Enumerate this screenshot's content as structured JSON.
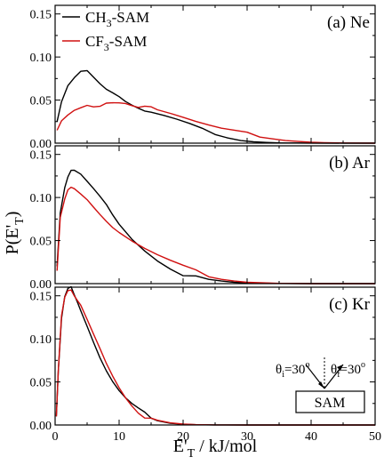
{
  "figure": {
    "shared_xlabel": "E'",
    "shared_xlabel_sub": "T",
    "shared_xlabel_unit": " / kJ/mol",
    "shared_ylabel": "P(E'",
    "shared_ylabel_sub": "T",
    "shared_ylabel_close": ")",
    "legend": [
      {
        "pre": "CH",
        "sub": "3",
        "post": "-SAM",
        "color": "#000000"
      },
      {
        "pre": "CF",
        "sub": "3",
        "post": "-SAM",
        "color": "#d01010"
      }
    ],
    "inset": {
      "theta_i_label": "θ",
      "theta_i_sub": "i",
      "theta_i_val": "=30",
      "theta_i_sup": "o",
      "theta_f_label": "θ",
      "theta_f_sub": "f",
      "theta_f_val": "=30",
      "theta_f_sup": "o",
      "box_label": "SAM"
    }
  },
  "chart_data": [
    {
      "type": "line",
      "title": "(a) Ne",
      "xlim": [
        0,
        50
      ],
      "ylim": [
        0,
        0.16
      ],
      "xticks": [
        0,
        10,
        20,
        30,
        40,
        50
      ],
      "yticks": [
        "0.00",
        "0.05",
        "0.10",
        "0.15"
      ],
      "series": [
        {
          "name": "CH3-SAM",
          "color": "#000000",
          "x": [
            0.3,
            1,
            2,
            3,
            4,
            5,
            6,
            7,
            8,
            9,
            10,
            11,
            12,
            13,
            14,
            15,
            17,
            19,
            21,
            23,
            25,
            27,
            29,
            31,
            33,
            35,
            40,
            45,
            50
          ],
          "y": [
            0.025,
            0.045,
            0.063,
            0.072,
            0.08,
            0.082,
            0.076,
            0.07,
            0.065,
            0.062,
            0.058,
            0.052,
            0.047,
            0.042,
            0.037,
            0.034,
            0.029,
            0.024,
            0.019,
            0.014,
            0.01,
            0.006,
            0.003,
            0.0015,
            0.0008,
            0.0003,
            0.0001,
            0,
            0
          ]
        },
        {
          "name": "CF3-SAM",
          "color": "#d01010",
          "x": [
            0.3,
            1,
            2,
            3,
            4,
            5,
            6,
            7,
            8,
            9,
            10,
            11,
            12,
            13,
            14,
            15,
            16,
            18,
            20,
            22,
            24,
            26,
            28,
            30,
            32,
            34,
            36,
            38,
            40,
            42,
            45,
            50
          ],
          "y": [
            0.015,
            0.028,
            0.036,
            0.042,
            0.045,
            0.047,
            0.044,
            0.043,
            0.045,
            0.044,
            0.043,
            0.042,
            0.04,
            0.039,
            0.042,
            0.043,
            0.041,
            0.038,
            0.034,
            0.029,
            0.024,
            0.019,
            0.015,
            0.011,
            0.007,
            0.005,
            0.003,
            0.002,
            0.001,
            0.0005,
            0.0002,
            0
          ]
        }
      ]
    },
    {
      "type": "line",
      "title": "(b) Ar",
      "xlim": [
        0,
        50
      ],
      "ylim": [
        0,
        0.16
      ],
      "xticks": [
        0,
        10,
        20,
        30,
        40,
        50
      ],
      "yticks": [
        "0.00",
        "0.05",
        "0.10",
        "0.15"
      ],
      "series": [
        {
          "name": "CH3-SAM",
          "color": "#000000",
          "x": [
            0.3,
            0.8,
            1.5,
            2,
            2.5,
            3,
            4,
            5,
            6,
            7,
            8,
            9,
            10,
            12,
            14,
            16,
            18,
            20,
            22,
            24,
            26,
            28,
            30,
            35,
            40,
            50
          ],
          "y": [
            0.02,
            0.085,
            0.115,
            0.128,
            0.135,
            0.134,
            0.128,
            0.118,
            0.108,
            0.098,
            0.088,
            0.076,
            0.066,
            0.05,
            0.038,
            0.028,
            0.02,
            0.013,
            0.009,
            0.005,
            0.003,
            0.0015,
            0.0008,
            0.0002,
            0,
            0
          ]
        },
        {
          "name": "CF3-SAM",
          "color": "#d01010",
          "x": [
            0.3,
            0.8,
            1.5,
            2,
            2.5,
            3,
            4,
            5,
            6,
            7,
            8,
            9,
            10,
            12,
            14,
            16,
            18,
            20,
            22,
            24,
            26,
            28,
            30,
            35,
            40,
            50
          ],
          "y": [
            0.015,
            0.075,
            0.095,
            0.105,
            0.108,
            0.107,
            0.102,
            0.097,
            0.09,
            0.083,
            0.076,
            0.069,
            0.063,
            0.052,
            0.042,
            0.033,
            0.025,
            0.018,
            0.012,
            0.008,
            0.005,
            0.003,
            0.0015,
            0.0003,
            0,
            0
          ]
        }
      ]
    },
    {
      "type": "line",
      "title": "(c) Kr",
      "xlim": [
        0,
        50
      ],
      "ylim": [
        0,
        0.16
      ],
      "xticks": [
        0,
        10,
        20,
        30,
        40,
        50
      ],
      "yticks": [
        "0.00",
        "0.05",
        "0.10",
        "0.15"
      ],
      "series": [
        {
          "name": "CH3-SAM",
          "color": "#000000",
          "x": [
            0.2,
            0.5,
            1,
            1.5,
            2,
            2.5,
            3,
            3.5,
            4,
            5,
            6,
            7,
            8,
            9,
            10,
            11,
            12,
            13,
            14,
            15,
            16,
            18,
            20,
            22,
            25,
            30,
            50
          ],
          "y": [
            0.01,
            0.06,
            0.12,
            0.145,
            0.155,
            0.158,
            0.15,
            0.143,
            0.135,
            0.118,
            0.1,
            0.082,
            0.066,
            0.052,
            0.04,
            0.03,
            0.022,
            0.016,
            0.011,
            0.008,
            0.005,
            0.002,
            0.0008,
            0.0003,
            0.0001,
            0,
            0
          ]
        },
        {
          "name": "CF3-SAM",
          "color": "#d01010",
          "x": [
            0.2,
            0.5,
            1,
            1.5,
            2,
            2.5,
            3,
            3.5,
            4,
            5,
            6,
            7,
            8,
            9,
            10,
            11,
            12,
            13,
            14,
            15,
            16,
            18,
            20,
            22,
            25,
            30,
            50
          ],
          "y": [
            0.01,
            0.065,
            0.13,
            0.152,
            0.16,
            0.16,
            0.152,
            0.145,
            0.138,
            0.12,
            0.102,
            0.085,
            0.068,
            0.054,
            0.042,
            0.032,
            0.024,
            0.017,
            0.012,
            0.008,
            0.0055,
            0.0025,
            0.001,
            0.0004,
            0.0001,
            0,
            0
          ]
        }
      ]
    }
  ]
}
